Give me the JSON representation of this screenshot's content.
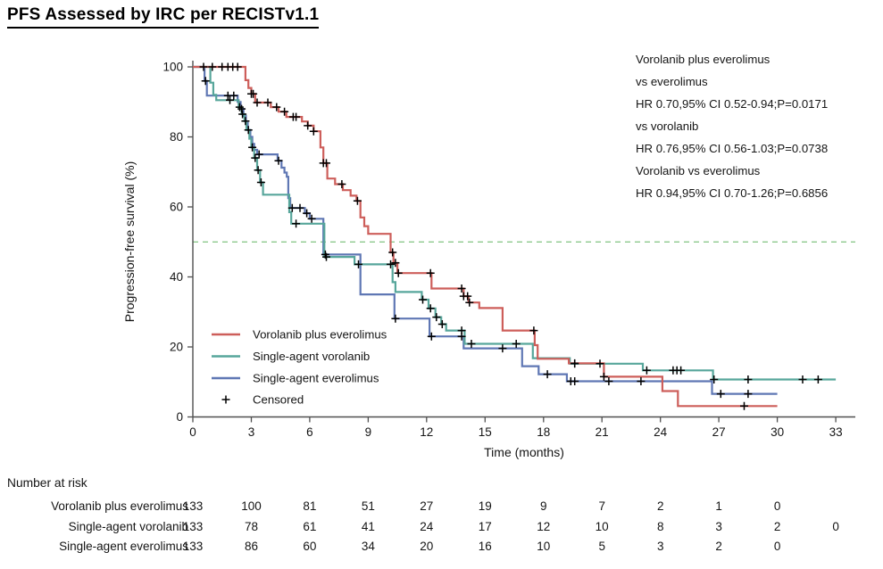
{
  "title": "PFS Assessed by IRC per RECISTv1.1",
  "chart_data": {
    "type": "line",
    "subtype": "kaplan-meier-step",
    "xlabel": "Time (months)",
    "ylabel": "Progression-free survival (%)",
    "xlim": [
      0,
      33
    ],
    "ylim": [
      0,
      100
    ],
    "xticks": [
      0,
      3,
      6,
      9,
      12,
      15,
      18,
      21,
      24,
      27,
      30,
      33
    ],
    "yticks": [
      0,
      20,
      40,
      60,
      80,
      100
    ],
    "grid": false,
    "reference_line_y": 50,
    "legend_position": "inside-lower-left",
    "series": [
      {
        "name": "Vorolanib plus everolimus",
        "color": "#cd5e5a",
        "end_time": 30,
        "steps": [
          [
            0,
            100
          ],
          [
            2.7,
            96.2
          ],
          [
            2.85,
            94.0
          ],
          [
            3.0,
            92.3
          ],
          [
            3.2,
            89.8
          ],
          [
            4.0,
            88.5
          ],
          [
            4.4,
            87.2
          ],
          [
            4.8,
            85.7
          ],
          [
            5.6,
            84.4
          ],
          [
            5.9,
            83.2
          ],
          [
            6.2,
            81.6
          ],
          [
            6.55,
            77.0
          ],
          [
            6.7,
            72.5
          ],
          [
            6.9,
            68.1
          ],
          [
            7.3,
            66.5
          ],
          [
            7.7,
            64.8
          ],
          [
            8.1,
            63.2
          ],
          [
            8.4,
            61.7
          ],
          [
            8.6,
            57.0
          ],
          [
            8.8,
            54.5
          ],
          [
            9.0,
            52.3
          ],
          [
            10.15,
            47.0
          ],
          [
            10.3,
            44.0
          ],
          [
            10.5,
            41.1
          ],
          [
            12.25,
            36.7
          ],
          [
            13.9,
            34.5
          ],
          [
            14.15,
            32.7
          ],
          [
            14.7,
            31.1
          ],
          [
            15.9,
            24.7
          ],
          [
            17.55,
            20.5
          ],
          [
            17.7,
            16.6
          ],
          [
            19.3,
            15.3
          ],
          [
            21.1,
            11.5
          ],
          [
            24.1,
            7.4
          ],
          [
            24.9,
            3.1
          ]
        ],
        "censor_times": [
          0.55,
          1.0,
          1.5,
          1.8,
          2.05,
          2.3,
          3.0,
          3.1,
          3.3,
          3.85,
          4.3,
          4.7,
          5.15,
          5.3,
          5.9,
          6.2,
          6.7,
          6.85,
          7.65,
          8.45,
          10.25,
          10.4,
          10.55,
          12.2,
          13.8,
          13.9,
          14.1,
          14.2,
          17.5,
          19.6,
          21.1,
          28.3
        ]
      },
      {
        "name": "Single-agent vorolanib",
        "color": "#57a69b",
        "end_time": 33,
        "steps": [
          [
            0,
            100
          ],
          [
            0.9,
            95.5
          ],
          [
            1.05,
            92.0
          ],
          [
            1.2,
            90.5
          ],
          [
            2.35,
            88.5
          ],
          [
            2.5,
            86.5
          ],
          [
            2.65,
            84.5
          ],
          [
            2.75,
            82.0
          ],
          [
            2.9,
            79.5
          ],
          [
            3.0,
            77.0
          ],
          [
            3.15,
            74.0
          ],
          [
            3.3,
            70.5
          ],
          [
            3.45,
            67.0
          ],
          [
            3.6,
            63.5
          ],
          [
            4.95,
            58.5
          ],
          [
            5.05,
            55.2
          ],
          [
            6.75,
            45.7
          ],
          [
            8.3,
            43.6
          ],
          [
            10.25,
            38.5
          ],
          [
            10.4,
            35.7
          ],
          [
            11.75,
            33.5
          ],
          [
            12.1,
            31.0
          ],
          [
            12.45,
            28.5
          ],
          [
            12.75,
            26.5
          ],
          [
            13.0,
            24.7
          ],
          [
            13.95,
            20.9
          ],
          [
            17.45,
            16.8
          ],
          [
            19.35,
            15.2
          ],
          [
            23.1,
            13.3
          ],
          [
            26.7,
            10.7
          ]
        ],
        "censor_times": [
          1.9,
          2.4,
          2.55,
          2.7,
          2.85,
          3.05,
          3.2,
          3.35,
          3.5,
          5.3,
          6.85,
          8.5,
          10.15,
          11.8,
          12.2,
          12.5,
          12.8,
          13.8,
          14.3,
          16.6,
          19.6,
          20.9,
          23.3,
          24.65,
          24.85,
          25.05,
          26.75,
          28.5,
          31.3,
          32.1
        ]
      },
      {
        "name": "Single-agent everolimus",
        "color": "#5f77b4",
        "end_time": 30,
        "steps": [
          [
            0,
            100
          ],
          [
            0.6,
            96.0
          ],
          [
            0.72,
            91.8
          ],
          [
            2.3,
            90.0
          ],
          [
            2.45,
            88.0
          ],
          [
            2.6,
            86.0
          ],
          [
            2.72,
            84.0
          ],
          [
            2.82,
            82.0
          ],
          [
            2.95,
            80.0
          ],
          [
            3.05,
            78.0
          ],
          [
            3.15,
            76.3
          ],
          [
            3.3,
            75.0
          ],
          [
            4.35,
            73.2
          ],
          [
            4.55,
            71.2
          ],
          [
            4.7,
            69.8
          ],
          [
            4.82,
            68.6
          ],
          [
            4.9,
            62.5
          ],
          [
            5.0,
            59.7
          ],
          [
            5.75,
            58.2
          ],
          [
            6.0,
            56.6
          ],
          [
            6.7,
            46.4
          ],
          [
            8.6,
            35.0
          ],
          [
            10.35,
            28.1
          ],
          [
            12.15,
            23.0
          ],
          [
            13.9,
            19.6
          ],
          [
            16.9,
            14.5
          ],
          [
            17.75,
            12.2
          ],
          [
            19.2,
            10.2
          ],
          [
            26.65,
            6.6
          ]
        ],
        "censor_times": [
          0.65,
          1.8,
          2.1,
          2.5,
          3.4,
          4.4,
          5.1,
          5.5,
          5.85,
          6.1,
          6.8,
          10.4,
          12.25,
          13.8,
          15.9,
          18.2,
          19.4,
          19.6,
          21.35,
          23.0,
          27.1,
          28.5
        ]
      }
    ],
    "censored_label": "Censored"
  },
  "annotation": {
    "lines": [
      "Vorolanib plus everolimus",
      "vs everolimus",
      "HR 0.70,95% CI 0.52-0.94;P=0.0171",
      "vs vorolanib",
      "HR 0.76,95% CI 0.56-1.03;P=0.0738",
      "Vorolanib vs everolimus",
      "HR 0.94,95% CI 0.70-1.26;P=0.6856"
    ]
  },
  "risk_table": {
    "header": "Number at risk",
    "time_points": [
      0,
      3,
      6,
      9,
      12,
      15,
      18,
      21,
      24,
      27,
      30,
      33
    ],
    "rows": [
      {
        "label": "Vorolanib plus everolimus",
        "values": [
          133,
          100,
          81,
          51,
          27,
          19,
          9,
          7,
          2,
          1,
          0
        ]
      },
      {
        "label": "Single-agent vorolanib",
        "values": [
          133,
          78,
          61,
          41,
          24,
          17,
          12,
          10,
          8,
          3,
          2,
          0
        ]
      },
      {
        "label": "Single-agent everolimus",
        "values": [
          133,
          86,
          60,
          34,
          20,
          16,
          10,
          5,
          3,
          2,
          0
        ]
      }
    ]
  },
  "colors": {
    "reference_dash": "#8cc98c",
    "axis": "#4f4f4f",
    "censor_mark": "#000000",
    "text": "#141414"
  }
}
